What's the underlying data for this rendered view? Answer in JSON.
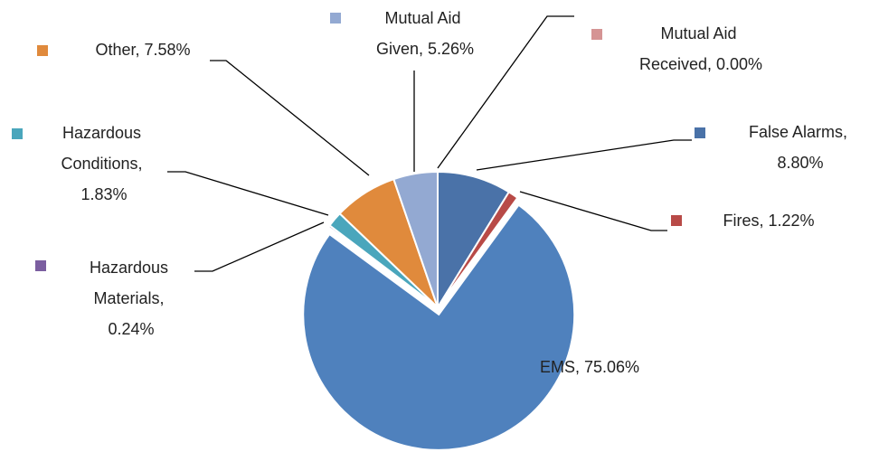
{
  "chart_data": {
    "type": "pie",
    "categories": [
      "False Alarms",
      "Fires",
      "EMS",
      "Hazardous Materials",
      "Hazardous Conditions",
      "Other",
      "Mutual Aid Given",
      "Mutual Aid Received"
    ],
    "values": [
      8.8,
      1.22,
      75.06,
      0.24,
      1.83,
      7.58,
      5.26,
      0.0
    ],
    "value_labels": [
      "False Alarms, 8.80%",
      "Fires, 1.22%",
      "EMS, 75.06%",
      "Hazardous Materials, 0.24%",
      "Hazardous Conditions, 1.83%",
      "Other, 7.58%",
      "Mutual Aid Given, 5.26%",
      "Mutual Aid Received, 0.00%"
    ],
    "colors": [
      "#4a72a8",
      "#b84a47",
      "#4f81bd",
      "#7b5ea0",
      "#4aa6bc",
      "#e08a3c",
      "#93a9d2",
      "#d59494"
    ],
    "exploded": "EMS"
  }
}
